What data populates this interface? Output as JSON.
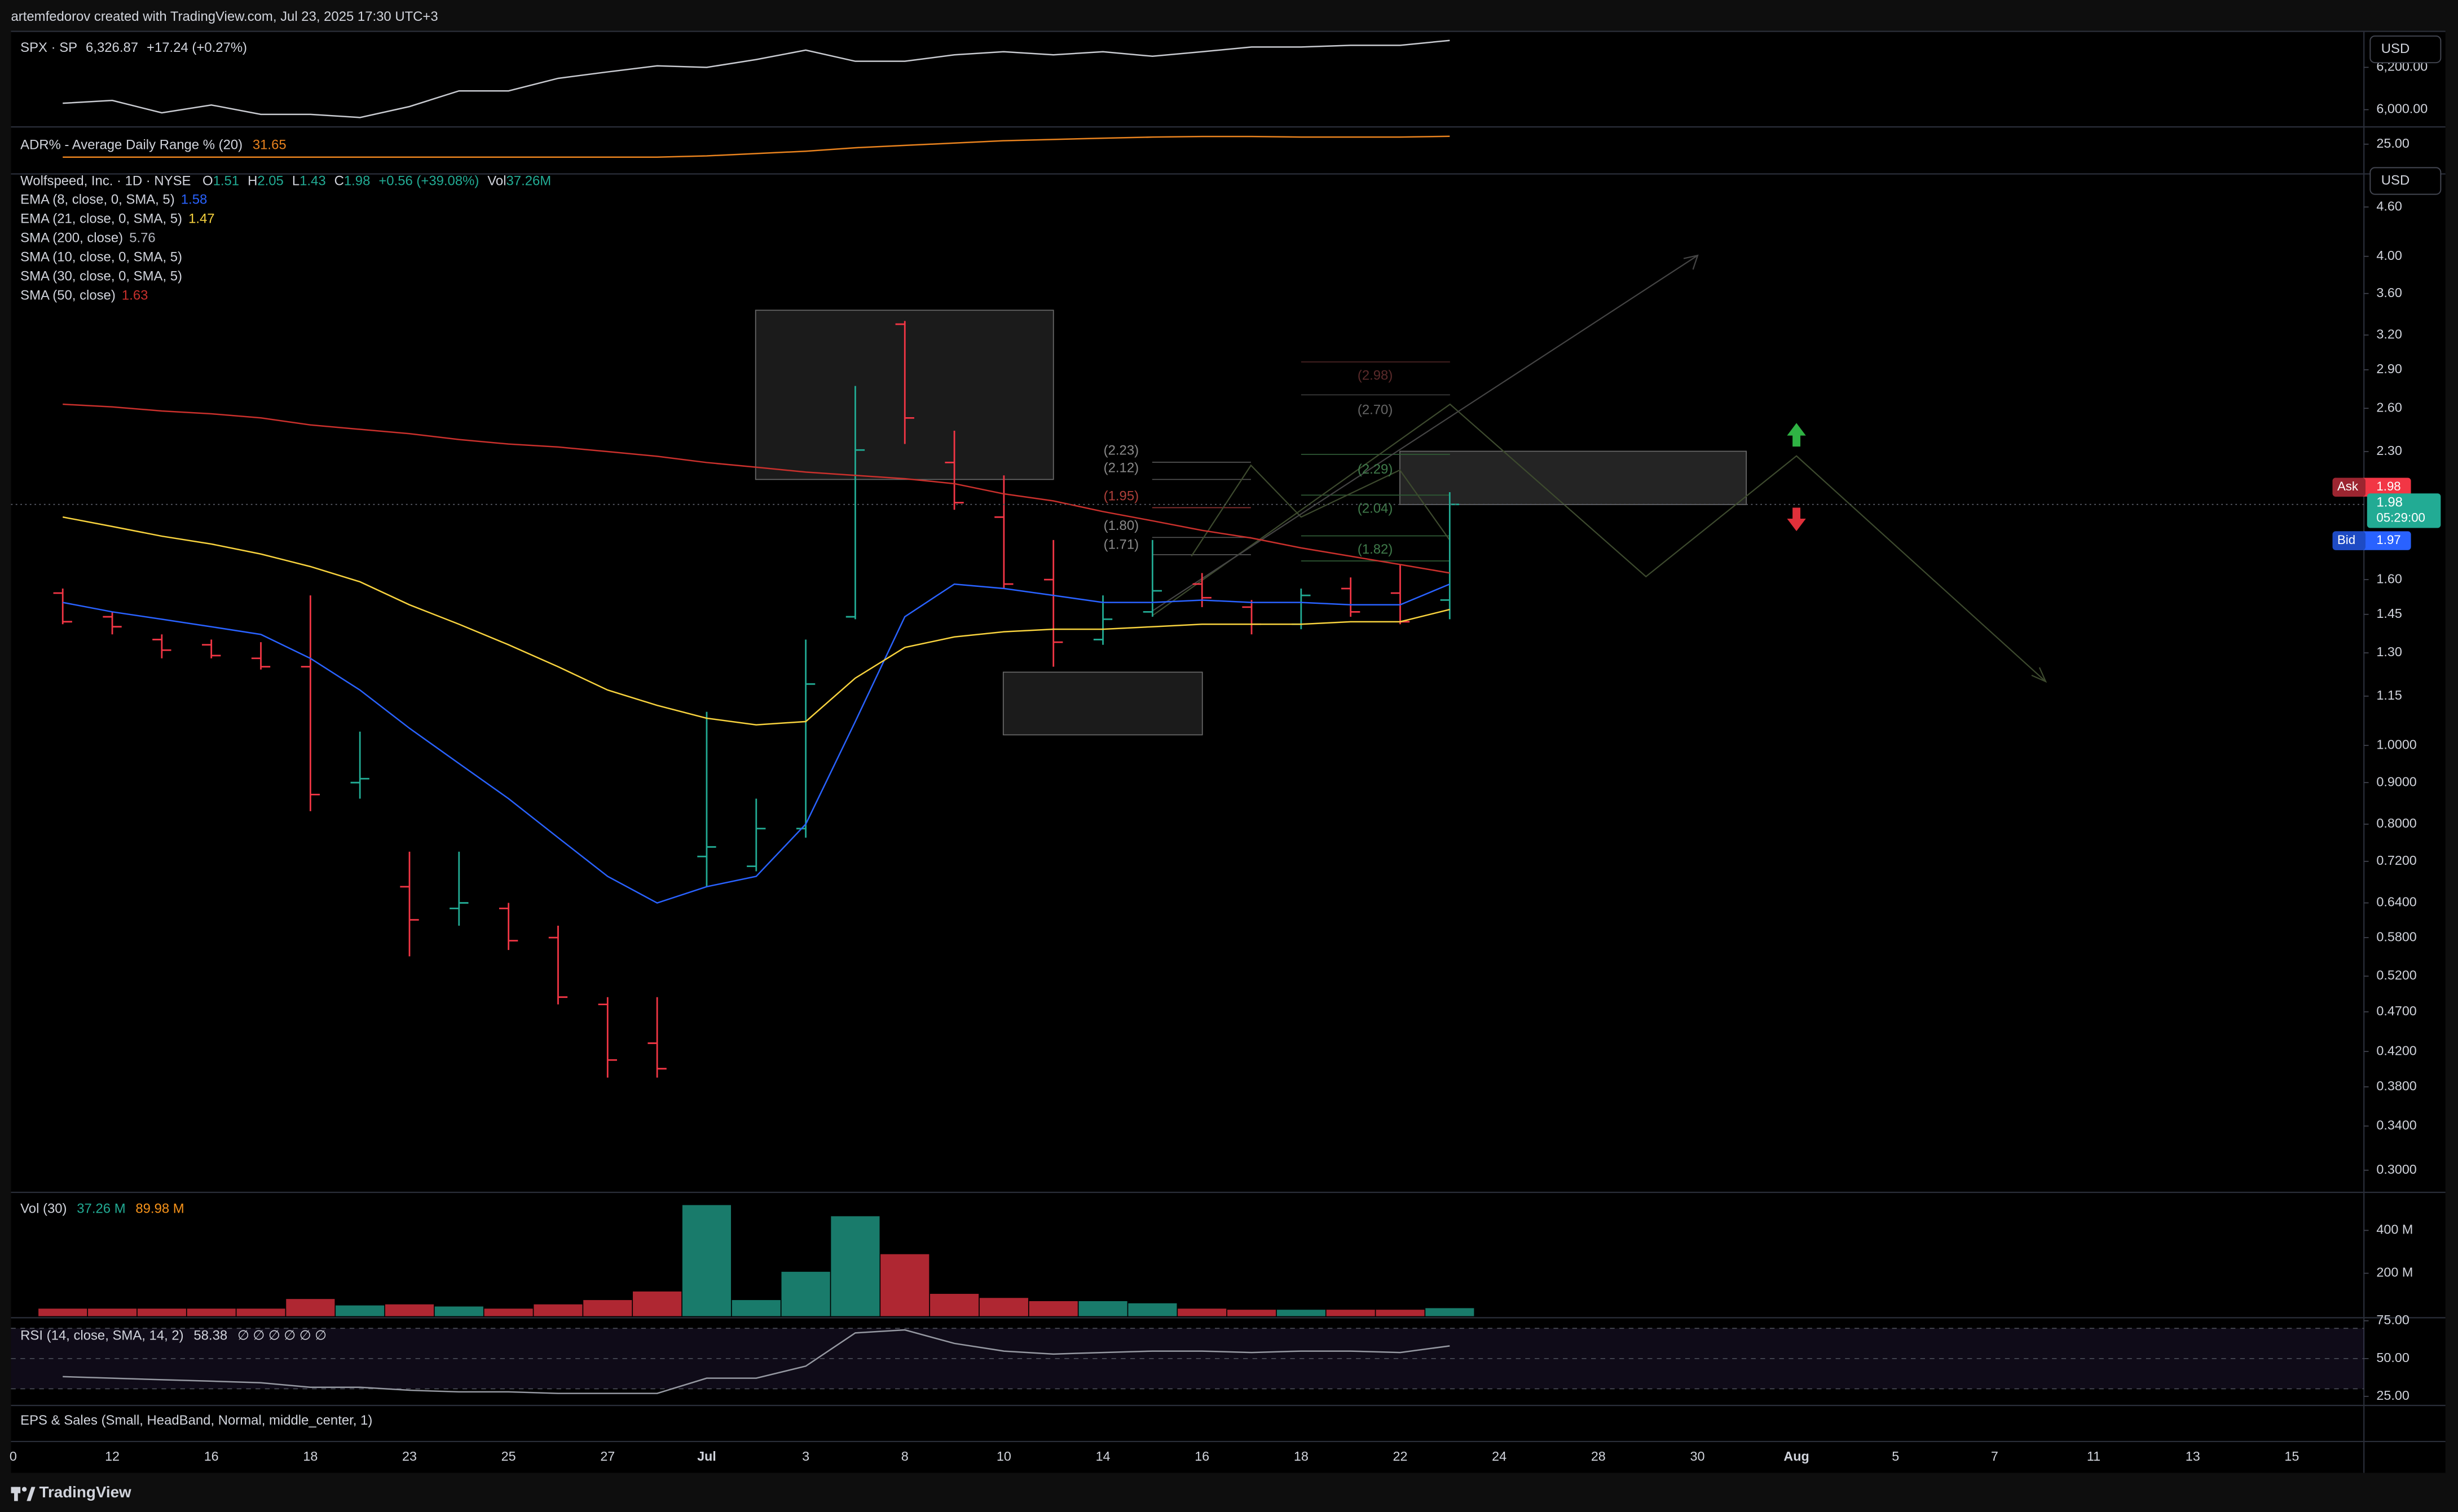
{
  "header": {
    "author_line": "artemfedorov created with TradingView.com, Jul 23, 2025 17:30 UTC+3"
  },
  "currency": "USD",
  "eps_indicator": "EPS & Sales (Small, HeadBand, Normal, middle_center, 1)",
  "footer": {
    "brand": "TradingView"
  },
  "drawings": {
    "fib_left": [
      "(2.23)",
      "(2.12)",
      "(1.95)",
      "(1.80)",
      "(1.71)"
    ],
    "fib_right": [
      "(2.98)",
      "(2.70)",
      "(2.29)",
      "(2.04)",
      "(1.82)"
    ]
  },
  "chart_data": [
    {
      "type": "line",
      "title": "SPX · SP",
      "last": "6,326.87",
      "change": "+17.24 (+0.27%)",
      "color": "#c9cbd1",
      "values": [
        null,
        6030,
        6044,
        5985,
        6022,
        5978,
        5978,
        5963,
        6015,
        6089,
        6089,
        6148,
        6178,
        6207,
        6200,
        6237,
        6281,
        6229,
        6229,
        6259,
        6274,
        6259,
        6274,
        6252,
        6274,
        6296,
        6296,
        6304,
        6304,
        6326.87,
        null,
        null,
        null,
        null,
        null,
        null,
        null,
        null,
        null,
        null,
        null,
        null,
        null,
        null,
        null,
        null,
        null
      ],
      "ylim": [
        5926,
        6370
      ],
      "yticks": [
        {
          "value": 6000,
          "label": "6,000.00"
        },
        {
          "value": 6200,
          "label": "6,200.00"
        }
      ]
    },
    {
      "type": "line",
      "title": "ADR% - Average Daily Range % (20)",
      "last": "31.65",
      "color": "#e8821e",
      "values": [
        null,
        14,
        14,
        14,
        14,
        14,
        14,
        14,
        14,
        14,
        14,
        14,
        14,
        14,
        15,
        17,
        19,
        22,
        24,
        26,
        28,
        29,
        30,
        31,
        31.5,
        31.5,
        31,
        31,
        31,
        31.65,
        null,
        null,
        null,
        null,
        null,
        null,
        null,
        null,
        null,
        null,
        null,
        null,
        null,
        null,
        null,
        null,
        null
      ],
      "ylim": [
        1.1,
        38.3
      ],
      "yticks": [
        {
          "value": 25,
          "label": "25.00"
        }
      ]
    },
    {
      "type": "ohlc",
      "title": "Wolfspeed, Inc. · 1D · NYSE",
      "ohlc_legend": [
        {
          "key": "O",
          "value": "1.51"
        },
        {
          "key": "H",
          "value": "2.05"
        },
        {
          "key": "L",
          "value": "1.43"
        },
        {
          "key": "C",
          "value": "1.98"
        }
      ],
      "change": "+0.56 (+39.08%)",
      "volume_key": "Vol",
      "volume_value": "37.26M",
      "up_color": "#22ab94",
      "down_color": "#f23645",
      "log_scale": true,
      "grid": false,
      "categories": [
        "0",
        null,
        "12",
        null,
        "16",
        null,
        "18",
        null,
        "23",
        null,
        "25",
        null,
        "27",
        null,
        "Jul",
        null,
        "3",
        null,
        "8",
        null,
        "10",
        null,
        "14",
        null,
        "16",
        null,
        "18",
        null,
        "22",
        null,
        "24",
        null,
        "28",
        null,
        "30",
        null,
        "Aug",
        null,
        "5",
        null,
        "7",
        null,
        "11",
        null,
        "13",
        null,
        "15"
      ],
      "open": [
        null,
        1.54,
        1.44,
        1.35,
        1.33,
        1.28,
        1.25,
        0.9,
        0.67,
        0.63,
        0.63,
        0.58,
        0.48,
        0.43,
        0.73,
        0.71,
        0.79,
        1.44,
        3.3,
        2.23,
        1.91,
        1.6,
        1.35,
        1.46,
        1.58,
        1.48,
        1.41,
        1.56,
        1.54,
        1.51,
        null,
        null,
        null,
        null,
        null,
        null,
        null,
        null,
        null,
        null,
        null,
        null,
        null,
        null,
        null,
        null,
        null
      ],
      "high": [
        null,
        1.56,
        1.46,
        1.37,
        1.35,
        1.34,
        1.53,
        1.04,
        0.74,
        0.74,
        0.64,
        0.6,
        0.49,
        0.49,
        1.1,
        0.86,
        1.35,
        2.77,
        3.33,
        2.44,
        2.15,
        1.79,
        1.53,
        1.79,
        1.63,
        1.51,
        1.56,
        1.61,
        1.67,
        2.05,
        null,
        null,
        null,
        null,
        null,
        null,
        null,
        null,
        null,
        null,
        null,
        null,
        null,
        null,
        null,
        null,
        null
      ],
      "low": [
        null,
        1.41,
        1.37,
        1.28,
        1.28,
        1.24,
        0.83,
        0.86,
        0.55,
        0.6,
        0.56,
        0.48,
        0.39,
        0.39,
        0.67,
        0.7,
        0.77,
        1.43,
        2.35,
        1.95,
        1.56,
        1.25,
        1.33,
        1.44,
        1.48,
        1.37,
        1.39,
        1.44,
        1.41,
        1.43,
        null,
        null,
        null,
        null,
        null,
        null,
        null,
        null,
        null,
        null,
        null,
        null,
        null,
        null,
        null,
        null,
        null
      ],
      "close": [
        null,
        1.42,
        1.4,
        1.31,
        1.29,
        1.25,
        0.87,
        0.91,
        0.61,
        0.64,
        0.575,
        0.49,
        0.41,
        0.4,
        0.75,
        0.79,
        1.19,
        2.31,
        2.53,
        1.99,
        1.58,
        1.34,
        1.43,
        1.55,
        1.52,
        1.41,
        1.53,
        1.46,
        1.42,
        1.98,
        null,
        null,
        null,
        null,
        null,
        null,
        null,
        null,
        null,
        null,
        null,
        null,
        null,
        null,
        null,
        null,
        null
      ],
      "series": [
        {
          "name": "EMA (8, close, 0, SMA, 5)",
          "color": "#2962ff",
          "legend_value": "1.58",
          "values": [
            null,
            1.5,
            1.46,
            1.43,
            1.4,
            1.37,
            1.28,
            1.17,
            1.05,
            0.95,
            0.86,
            0.77,
            0.69,
            0.64,
            0.67,
            0.69,
            0.8,
            1.07,
            1.44,
            1.58,
            1.56,
            1.53,
            1.5,
            1.5,
            1.51,
            1.5,
            1.5,
            1.49,
            1.49,
            1.58,
            null,
            null,
            null,
            null,
            null,
            null,
            null,
            null,
            null,
            null,
            null,
            null,
            null,
            null,
            null,
            null,
            null
          ]
        },
        {
          "name": "EMA (21, close, 0, SMA, 5)",
          "color": "#f7d23e",
          "legend_value": "1.47",
          "values": [
            null,
            1.91,
            1.86,
            1.81,
            1.77,
            1.72,
            1.66,
            1.59,
            1.49,
            1.41,
            1.33,
            1.25,
            1.17,
            1.12,
            1.08,
            1.06,
            1.07,
            1.21,
            1.32,
            1.36,
            1.38,
            1.39,
            1.39,
            1.4,
            1.41,
            1.41,
            1.41,
            1.42,
            1.42,
            1.47,
            null,
            null,
            null,
            null,
            null,
            null,
            null,
            null,
            null,
            null,
            null,
            null,
            null,
            null,
            null,
            null,
            null
          ]
        },
        {
          "name": "SMA (200, close)",
          "color": "#b2b5be",
          "legend_value": "5.76"
        },
        {
          "name": "SMA (10, close, 0, SMA, 5)",
          "color": "#b2b5be"
        },
        {
          "name": "SMA (30, close, 0, SMA, 5)",
          "color": "#b2b5be"
        },
        {
          "name": "SMA (50, close)",
          "color": "#c9302c",
          "legend_value": "1.63",
          "values": [
            null,
            2.63,
            2.61,
            2.58,
            2.56,
            2.53,
            2.48,
            2.45,
            2.42,
            2.38,
            2.35,
            2.33,
            2.3,
            2.27,
            2.23,
            2.2,
            2.17,
            2.15,
            2.13,
            2.1,
            2.04,
            2.0,
            1.94,
            1.89,
            1.84,
            1.8,
            1.75,
            1.71,
            1.67,
            1.63,
            null,
            null,
            null,
            null,
            null,
            null,
            null,
            null,
            null,
            null,
            null,
            null,
            null,
            null,
            null,
            null,
            null
          ]
        }
      ],
      "last_price": {
        "value": 1.98,
        "label": "1.98",
        "countdown": "05:29:00"
      },
      "ask": {
        "name": "Ask",
        "value": 1.98,
        "label": "1.98"
      },
      "bid": {
        "name": "Bid",
        "value": 1.97,
        "label": "1.97"
      },
      "ylim": [
        0.283,
        5.03
      ],
      "yticks": [
        {
          "value": 4.6,
          "label": "4.60"
        },
        {
          "value": 4,
          "label": "4.00"
        },
        {
          "value": 3.6,
          "label": "3.60"
        },
        {
          "value": 3.2,
          "label": "3.20"
        },
        {
          "value": 2.9,
          "label": "2.90"
        },
        {
          "value": 2.6,
          "label": "2.60"
        },
        {
          "value": 2.3,
          "label": "2.30"
        },
        {
          "value": 1.6,
          "label": "1.60"
        },
        {
          "value": 1.45,
          "label": "1.45"
        },
        {
          "value": 1.3,
          "label": "1.30"
        },
        {
          "value": 1.15,
          "label": "1.15"
        },
        {
          "value": 1,
          "label": "1.0000"
        },
        {
          "value": 0.9,
          "label": "0.9000"
        },
        {
          "value": 0.8,
          "label": "0.8000"
        },
        {
          "value": 0.72,
          "label": "0.7200"
        },
        {
          "value": 0.64,
          "label": "0.6400"
        },
        {
          "value": 0.58,
          "label": "0.5800"
        },
        {
          "value": 0.52,
          "label": "0.5200"
        },
        {
          "value": 0.47,
          "label": "0.4700"
        },
        {
          "value": 0.42,
          "label": "0.4200"
        },
        {
          "value": 0.38,
          "label": "0.3800"
        },
        {
          "value": 0.34,
          "label": "0.3400"
        },
        {
          "value": 0.3,
          "label": "0.3000"
        }
      ]
    },
    {
      "type": "bar",
      "title": "Vol (30)",
      "legend_values": [
        "37.26 M",
        "89.98 M"
      ],
      "legend_colors": [
        "#22ab94",
        "#f7931a"
      ],
      "values": [
        null,
        35,
        35,
        35,
        35,
        35,
        80,
        50,
        55,
        45,
        35,
        55,
        75,
        115,
        518,
        75,
        207,
        466,
        289,
        104,
        85,
        70,
        70,
        60,
        35,
        30,
        30,
        30,
        30,
        37.26,
        null,
        null,
        null,
        null,
        null,
        null,
        null,
        null,
        null,
        null,
        null,
        null,
        null,
        null,
        null,
        null,
        null
      ],
      "ylim": [
        0,
        570
      ],
      "yticks": [
        {
          "value": 400,
          "label": "400 M"
        },
        {
          "value": 200,
          "label": "200 M"
        }
      ]
    },
    {
      "type": "line",
      "title": "RSI (14, close, SMA, 14, 2)",
      "last": "58.38",
      "extra": "∅ ∅ ∅ ∅ ∅ ∅",
      "color": "#9598a1",
      "values": [
        null,
        38,
        37,
        36,
        35,
        34,
        31,
        31,
        29,
        28,
        28,
        27,
        27,
        27,
        37,
        37,
        45,
        67,
        69,
        60,
        55,
        53,
        54,
        55,
        55,
        54,
        55,
        55,
        54,
        58.38,
        null,
        null,
        null,
        null,
        null,
        null,
        null,
        null,
        null,
        null,
        null,
        null,
        null,
        null,
        null,
        null,
        null
      ],
      "bands": [
        70,
        50,
        30
      ],
      "ylim": [
        20,
        76
      ],
      "yticks": [
        {
          "value": 75,
          "label": "75.00"
        },
        {
          "value": 50,
          "label": "50.00"
        },
        {
          "value": 25,
          "label": "25.00"
        }
      ]
    }
  ]
}
